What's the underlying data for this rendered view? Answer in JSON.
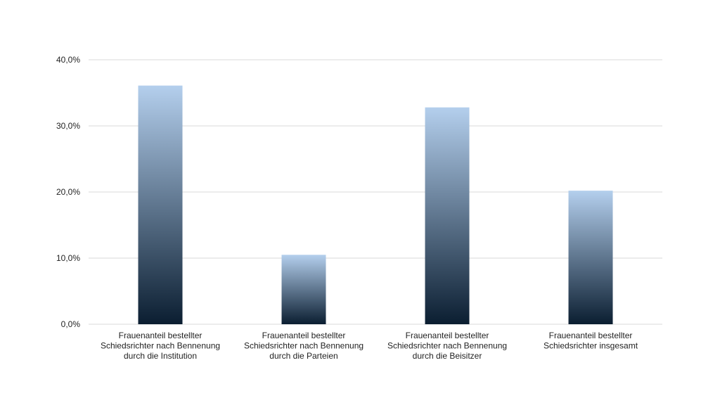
{
  "chart_data": {
    "type": "bar",
    "categories": [
      [
        "Frauenanteil bestellter",
        "Schiedsrichter nach Bennenung",
        "durch die Institution"
      ],
      [
        "Frauenanteil bestellter",
        "Schiedsrichter nach Bennenung",
        "durch die Parteien"
      ],
      [
        "Frauenanteil bestellter",
        "Schiedsrichter nach Bennenung",
        "durch die Beisitzer"
      ],
      [
        "Frauenanteil bestellter",
        "Schiedsrichter insgesamt"
      ]
    ],
    "values": [
      36.1,
      10.5,
      32.8,
      20.2
    ],
    "ylim": [
      0,
      40
    ],
    "yticks": [
      0,
      10,
      20,
      30,
      40
    ],
    "ytick_labels": [
      "0,0%",
      "10,0%",
      "20,0%",
      "30,0%",
      "40,0%"
    ],
    "grid": true,
    "colors": {
      "bar_top": "#b4cfed",
      "bar_bottom": "#0b1e31",
      "grid": "#d9d9d9",
      "text": "#222222"
    }
  }
}
